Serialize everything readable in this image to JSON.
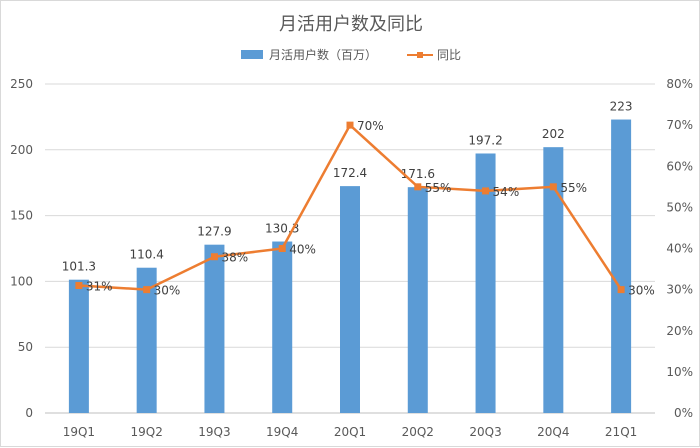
{
  "chart_data": {
    "type": "bar",
    "title": "月活用户数及同比",
    "categories": [
      "19Q1",
      "19Q2",
      "19Q3",
      "19Q4",
      "20Q1",
      "20Q2",
      "20Q3",
      "20Q4",
      "21Q1"
    ],
    "series": [
      {
        "name": "月活用户数（百万）",
        "type": "bar",
        "axis": "left",
        "color": "#5b9bd5",
        "values": [
          101.3,
          110.4,
          127.9,
          130.3,
          172.4,
          171.6,
          197.2,
          202,
          223
        ],
        "labels": [
          "101.3",
          "110.4",
          "127.9",
          "130.3",
          "172.4",
          "171.6",
          "197.2",
          "202",
          "223"
        ]
      },
      {
        "name": "同比",
        "type": "line",
        "axis": "right",
        "color": "#ed7d31",
        "values": [
          31,
          30,
          38,
          40,
          70,
          55,
          54,
          55,
          30
        ],
        "labels": [
          "31%",
          "30%",
          "38%",
          "40%",
          "70%",
          "55%",
          "54%",
          "55%",
          "30%"
        ]
      }
    ],
    "left_axis": {
      "min": 0,
      "max": 250,
      "ticks": [
        0,
        50,
        100,
        150,
        200,
        250
      ],
      "tick_labels": [
        "0",
        "50",
        "100",
        "150",
        "200",
        "250"
      ]
    },
    "right_axis": {
      "min": 0,
      "max": 80,
      "ticks": [
        0,
        10,
        20,
        30,
        40,
        50,
        60,
        70,
        80
      ],
      "tick_labels": [
        "0%",
        "10%",
        "20%",
        "30%",
        "40%",
        "50%",
        "60%",
        "70%",
        "80%"
      ]
    },
    "xlabel": "",
    "ylabel": "",
    "grid": true,
    "legend_position": "top"
  }
}
